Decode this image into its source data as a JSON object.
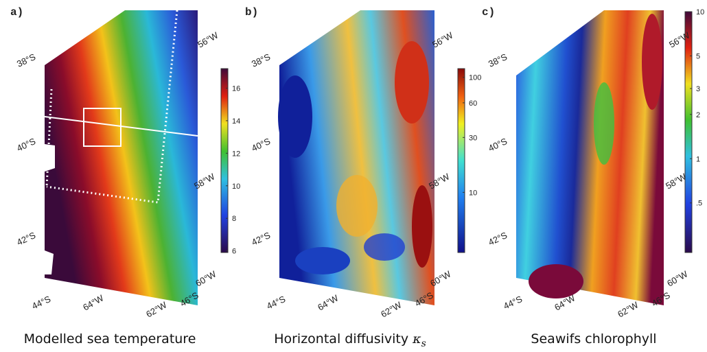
{
  "panels": [
    {
      "label": "a)",
      "caption": "Modelled sea temperature",
      "lat_labels": [
        "38°S",
        "40°S",
        "42°S",
        "44°S"
      ],
      "bottom_labels": [
        "64°W",
        "62°W",
        "46°S"
      ],
      "right_labels": [
        "56°W",
        "58°W",
        "60°W"
      ],
      "colorbar": {
        "log": false,
        "range": [
          5.9,
          17.2
        ],
        "ticks": [
          6,
          8,
          10,
          12,
          14,
          16
        ]
      }
    },
    {
      "label": "b)",
      "caption": "Horizontal diffusivity",
      "caption_symbol": "κ",
      "caption_subscript": "s",
      "lat_labels": [
        "38°S",
        "40°S",
        "42°S",
        "44°S"
      ],
      "bottom_labels": [
        "64°W",
        "62°W",
        "46°S"
      ],
      "right_labels": [
        "56°W",
        "58°W",
        "60°W"
      ],
      "colorbar": {
        "log": true,
        "range": [
          3,
          119
        ],
        "ticks": [
          10,
          30,
          60,
          100
        ]
      }
    },
    {
      "label": "c)",
      "caption": "Seawifs chlorophyll",
      "lat_labels": [
        "38°S",
        "40°S",
        "42°S",
        "44°S"
      ],
      "bottom_labels": [
        "64°W",
        "62°W",
        "46°S"
      ],
      "right_labels": [
        "56°W",
        "58°W",
        "60°W"
      ],
      "colorbar": {
        "log": true,
        "range": [
          0.23,
          10
        ],
        "ticks": [
          {
            "value": 0.5,
            "label": ".5"
          },
          1,
          2,
          3,
          5,
          10
        ]
      }
    }
  ]
}
